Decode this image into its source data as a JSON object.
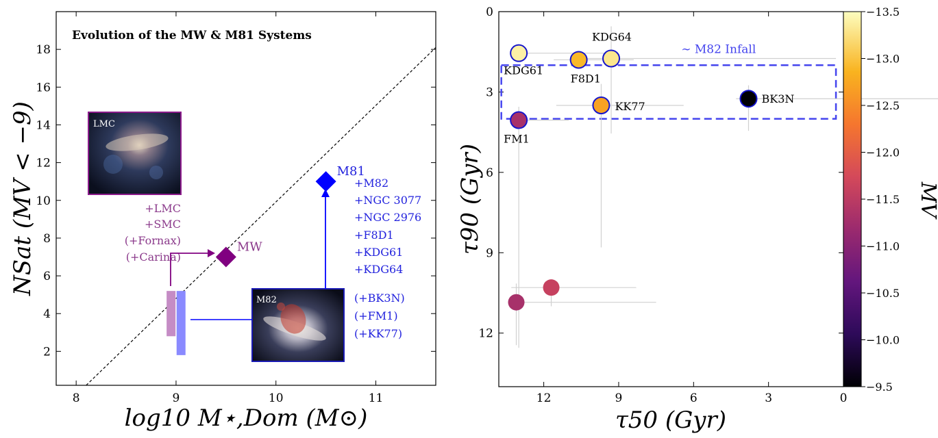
{
  "chart_data": [
    {
      "type": "scatter",
      "title": "Evolution of the MW & M81 Systems",
      "xlabel": "log10 M⋆,Dom (M⊙)",
      "ylabel": "NSat (MV < −9)",
      "xlim": [
        7.8,
        11.6
      ],
      "ylim": [
        0.2,
        20
      ],
      "x_ticks": [
        8,
        9,
        10,
        11
      ],
      "y_ticks": [
        2,
        4,
        6,
        8,
        10,
        12,
        14,
        16,
        18
      ],
      "grid": false,
      "points": [
        {
          "label": "MW",
          "x": 9.5,
          "y": 7.0,
          "color": "#800080",
          "marker": "diamond"
        },
        {
          "label": "M81",
          "x": 10.5,
          "y": 11.0,
          "color": "#0000ff",
          "marker": "diamond"
        }
      ],
      "bars": [
        {
          "x": 8.95,
          "y_low": 2.8,
          "y_high": 5.2,
          "color": "#c58cc5"
        },
        {
          "x": 9.05,
          "y_low": 1.8,
          "y_high": 5.2,
          "color": "#8a8aff"
        }
      ],
      "one_to_one_line": {
        "x": [
          8.1,
          11.6
        ],
        "y": [
          0.2,
          18.1
        ]
      },
      "images": [
        {
          "label": "LMC",
          "frame_color": "#8b1a8b"
        },
        {
          "label": "M82",
          "frame_color": "#1a1ab4"
        }
      ],
      "annotations": {
        "mw_additions": [
          "+LMC",
          "+SMC",
          "(+Fornax)",
          "(+Carina)"
        ],
        "m81_additions": [
          "+M82",
          "+NGC 3077",
          "+NGC 2976",
          "+F8D1",
          "+KDG61",
          "+KDG64",
          "(+BK3N)",
          "(+FM1)",
          "(+KK77)"
        ]
      }
    },
    {
      "type": "scatter",
      "xlabel": "τ50 (Gyr)",
      "ylabel": "τ90 (Gyr)",
      "colorbar_label": "MV",
      "xlim": [
        13.8,
        0
      ],
      "ylim": [
        14.0,
        0
      ],
      "x_ticks": [
        12,
        9,
        6,
        3,
        0
      ],
      "y_ticks": [
        0,
        3,
        6,
        9,
        12
      ],
      "colorbar_ticks": [
        "−13.5",
        "−13.0",
        "−12.5",
        "−12.0",
        "−11.5",
        "−11.0",
        "−10.5",
        "−10.0",
        "−9.5"
      ],
      "colorbar_range": [
        -13.5,
        -9.5
      ],
      "infall_box": {
        "label": "∼ M82 Infall",
        "x": [
          13.7,
          0.3
        ],
        "y": [
          2.0,
          4.0
        ]
      },
      "points": [
        {
          "label": "KDG61",
          "x": 13.0,
          "y": 1.55,
          "mv": -13.4,
          "xerr": [
            0.1,
            3.7
          ],
          "yerr": [
            0.0,
            0.0
          ],
          "outlined": true
        },
        {
          "label": "KDG64",
          "x": 9.3,
          "y": 1.75,
          "mv": -13.3,
          "xerr": [
            1.2,
            9.0
          ],
          "yerr": [
            1.2,
            2.8
          ],
          "outlined": true
        },
        {
          "label": "F8D1",
          "x": 10.6,
          "y": 1.8,
          "mv": -12.9,
          "xerr": [
            1.0,
            2.2
          ],
          "yerr": [
            0.0,
            0.0
          ],
          "outlined": true
        },
        {
          "label": "KK77",
          "x": 9.7,
          "y": 3.5,
          "mv": -12.7,
          "xerr": [
            1.8,
            3.3
          ],
          "yerr": [
            0.8,
            5.3
          ],
          "outlined": true
        },
        {
          "label": "BK3N",
          "x": 3.8,
          "y": 3.25,
          "mv": -9.5,
          "xerr": [
            0.5,
            9.2
          ],
          "yerr": [
            0.5,
            1.2
          ],
          "outlined": true
        },
        {
          "label": "FM1",
          "x": 13.0,
          "y": 4.05,
          "mv": -11.3,
          "xerr": [
            0.1,
            2.0
          ],
          "yerr": [
            0.5,
            8.5
          ],
          "outlined": true
        },
        {
          "label": "",
          "x": 11.7,
          "y": 10.3,
          "mv": -11.6,
          "xerr": [
            1.6,
            3.4
          ],
          "yerr": [
            0.0,
            0.7
          ],
          "outlined": false
        },
        {
          "label": "",
          "x": 13.1,
          "y": 10.85,
          "mv": -11.3,
          "xerr": [
            0.0,
            5.6
          ],
          "yerr": [
            0.7,
            1.6
          ],
          "outlined": false
        }
      ]
    }
  ]
}
